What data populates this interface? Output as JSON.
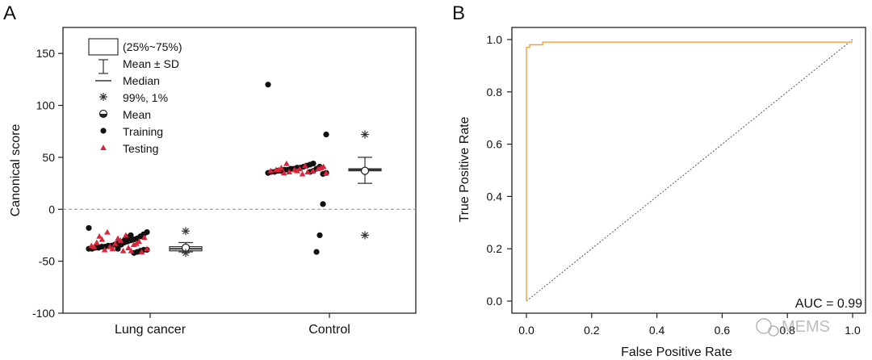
{
  "chart_data": [
    {
      "type": "box",
      "panel_label": "A",
      "categories": [
        "Lung cancer",
        "Control"
      ],
      "ylabel": "Canonical score",
      "xlabel": "",
      "ylim": [
        -100,
        175
      ],
      "yticks": [
        -100,
        -50,
        0,
        50,
        100,
        150
      ],
      "reference_line_y": 0,
      "legend": {
        "placement": "top-left",
        "entries": [
          {
            "symbol": "box",
            "label": "(25%~75%)"
          },
          {
            "symbol": "whisker",
            "label": "Mean ± SD"
          },
          {
            "symbol": "line",
            "label": "Median"
          },
          {
            "symbol": "asterisk",
            "label": "99%, 1%"
          },
          {
            "symbol": "half-circle",
            "label": "Mean"
          },
          {
            "symbol": "dot",
            "label": "Training"
          },
          {
            "symbol": "triangle",
            "label": "Testing"
          }
        ]
      },
      "boxes": [
        {
          "category": "Lung cancer",
          "q1": -40,
          "q3": -36,
          "median": -38,
          "mean": -37,
          "sd_low": -41,
          "sd_high": -32,
          "p99": -21,
          "p1": -42
        },
        {
          "category": "Control",
          "q1": 37,
          "q3": 39,
          "median": 38,
          "mean": 37,
          "sd_low": 25,
          "sd_high": 50,
          "p99": 72,
          "p1": -25
        }
      ],
      "scatter": {
        "Lung cancer": {
          "training": [
            -18,
            -22,
            -24,
            -26,
            -28,
            -29,
            -30,
            -31,
            -32,
            -33,
            -33,
            -34,
            -35,
            -35,
            -36,
            -36,
            -37,
            -37,
            -38,
            -38,
            -39,
            -39,
            -40,
            -41,
            -42,
            -25,
            -27,
            -30,
            -34,
            -38
          ],
          "testing": [
            -22,
            -25,
            -27,
            -29,
            -30,
            -31,
            -32,
            -33,
            -34,
            -35,
            -36,
            -37,
            -38,
            -39,
            -40,
            -41,
            -26,
            -28,
            -33,
            -36,
            -38,
            -40
          ]
        },
        "Control": {
          "training": [
            120,
            72,
            5,
            -25,
            -41,
            44,
            43,
            42,
            41,
            40,
            40,
            39,
            39,
            38,
            38,
            37,
            37,
            36,
            36,
            35,
            35,
            34,
            41,
            39,
            37,
            36
          ],
          "testing": [
            44,
            42,
            41,
            40,
            39,
            39,
            38,
            38,
            37,
            37,
            36,
            36,
            35,
            35,
            34,
            40,
            38,
            37
          ]
        }
      }
    },
    {
      "type": "line",
      "panel_label": "B",
      "title": "",
      "xlabel": "False Positive Rate",
      "ylabel": "True Positive Rate",
      "xlim": [
        0,
        1.0
      ],
      "ylim": [
        0,
        1.0
      ],
      "xticks": [
        0.0,
        0.2,
        0.4,
        0.6,
        0.8,
        1.0
      ],
      "yticks": [
        0.0,
        0.2,
        0.4,
        0.6,
        0.8,
        1.0
      ],
      "annotation": "AUC = 0.99",
      "colors": {
        "roc": "#f0a040",
        "diagonal": "#555555"
      },
      "series": [
        {
          "x": [
            0.0,
            0.0,
            0.0,
            0.01,
            0.01,
            0.02,
            0.04,
            0.05,
            0.05,
            1.0
          ],
          "y": [
            0.0,
            0.96,
            0.97,
            0.97,
            0.98,
            0.98,
            0.98,
            0.98,
            0.99,
            0.99
          ]
        }
      ],
      "diagonal": {
        "x": [
          0.0,
          1.0
        ],
        "y": [
          0.0,
          1.0
        ]
      }
    }
  ],
  "watermark": "MEMS"
}
